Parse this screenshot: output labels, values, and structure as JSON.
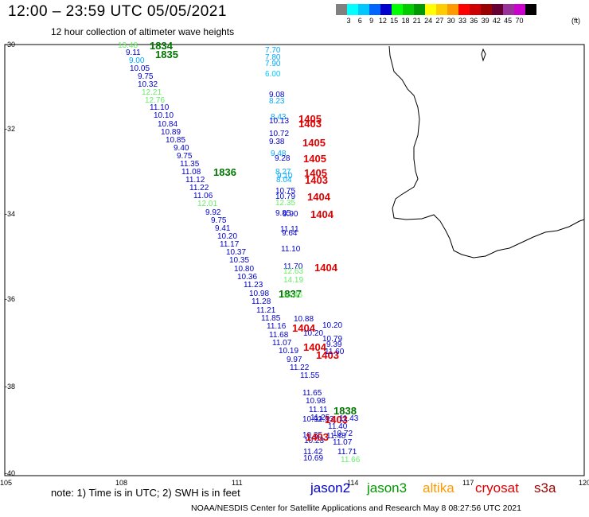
{
  "header": {
    "title": "12:00 – 23:59 UTC 05/05/2021",
    "subtitle": "12 hour collection of altimeter wave heights"
  },
  "color_scale": {
    "colors": [
      "#808080",
      "#00ffff",
      "#00c8ff",
      "#0064ff",
      "#0000cc",
      "#00ff00",
      "#00cc00",
      "#009900",
      "#ffff00",
      "#ffcc00",
      "#ff9900",
      "#ff0000",
      "#cc0000",
      "#990000",
      "#660033",
      "#993399",
      "#cc00cc",
      "#000000"
    ],
    "labels": [
      "3",
      "6",
      "9",
      "12",
      "15",
      "18",
      "21",
      "24",
      "27",
      "30",
      "33",
      "36",
      "39",
      "42",
      "45",
      "70"
    ],
    "unit": "(ft)"
  },
  "axes": {
    "lat_labels": [
      "-30",
      "-32",
      "-34",
      "-36",
      "-38",
      "-40"
    ],
    "lon_labels": [
      "105",
      "108",
      "111",
      "114",
      "117",
      "120"
    ]
  },
  "observations": [
    {
      "t": "13.48",
      "c": "#66ee66"
    },
    {
      "t": "1834",
      "c": "#007700",
      "big": true
    },
    {
      "t": "9.11",
      "c": "#0000cc"
    },
    {
      "t": "1835",
      "c": "#007700",
      "big": true
    },
    {
      "t": "9.00",
      "c": "#00aaff"
    },
    {
      "t": "10.05",
      "c": "#0000cc"
    },
    {
      "t": "9.75",
      "c": "#0000cc"
    },
    {
      "t": "10.32",
      "c": "#0000cc"
    },
    {
      "t": "12.21",
      "c": "#66ee66"
    },
    {
      "t": "12.76",
      "c": "#66ee66"
    },
    {
      "t": "11.10",
      "c": "#0000cc"
    },
    {
      "t": "10.10",
      "c": "#0000cc"
    },
    {
      "t": "10.84",
      "c": "#0000cc"
    },
    {
      "t": "10.89",
      "c": "#0000cc"
    },
    {
      "t": "10.85",
      "c": "#0000cc"
    },
    {
      "t": "9.40",
      "c": "#0000cc"
    },
    {
      "t": "9.75",
      "c": "#0000cc"
    },
    {
      "t": "11.35",
      "c": "#0000cc"
    },
    {
      "t": "11.08",
      "c": "#0000cc"
    },
    {
      "t": "1836",
      "c": "#007700",
      "big": true
    },
    {
      "t": "11.12",
      "c": "#0000cc"
    },
    {
      "t": "11.22",
      "c": "#0000cc"
    },
    {
      "t": "11.06",
      "c": "#0000cc"
    },
    {
      "t": "12.01",
      "c": "#66ee66"
    },
    {
      "t": "9.92",
      "c": "#0000cc"
    },
    {
      "t": "9.75",
      "c": "#0000cc"
    },
    {
      "t": "9.41",
      "c": "#0000cc"
    },
    {
      "t": "10.20",
      "c": "#0000cc"
    },
    {
      "t": "11.17",
      "c": "#0000cc"
    },
    {
      "t": "10.37",
      "c": "#0000cc"
    },
    {
      "t": "10.35",
      "c": "#0000cc"
    },
    {
      "t": "10.80",
      "c": "#0000cc"
    },
    {
      "t": "10.36",
      "c": "#0000cc"
    },
    {
      "t": "11.23",
      "c": "#0000cc"
    },
    {
      "t": "10.98",
      "c": "#0000cc"
    },
    {
      "t": "1837",
      "c": "#007700",
      "big": true
    },
    {
      "t": "11.28",
      "c": "#0000cc"
    },
    {
      "t": "11.21",
      "c": "#0000cc"
    },
    {
      "t": "11.85",
      "c": "#0000cc"
    },
    {
      "t": "11.16",
      "c": "#0000cc"
    },
    {
      "t": "11.68",
      "c": "#0000cc"
    },
    {
      "t": "11.07",
      "c": "#0000cc"
    },
    {
      "t": "10.19",
      "c": "#0000cc"
    },
    {
      "t": "9.97",
      "c": "#0000cc"
    },
    {
      "t": "11.22",
      "c": "#0000cc"
    },
    {
      "t": "11.55",
      "c": "#0000cc"
    },
    {
      "t": "11.65",
      "c": "#0000cc"
    },
    {
      "t": "10.98",
      "c": "#0000cc"
    },
    {
      "t": "11.11",
      "c": "#0000cc"
    },
    {
      "t": "1838",
      "c": "#007700",
      "big": true
    },
    {
      "t": "10.92",
      "c": "#0000cc"
    },
    {
      "t": "10.35",
      "c": "#0000cc"
    },
    {
      "t": "10.23",
      "c": "#0000cc"
    },
    {
      "t": "11.42",
      "c": "#0000cc"
    },
    {
      "t": "10.69",
      "c": "#0000cc"
    },
    {
      "t": "7.70",
      "c": "#00aaff"
    },
    {
      "t": "7.80",
      "c": "#00aaff"
    },
    {
      "t": "7.90",
      "c": "#00aaff"
    },
    {
      "t": "6.00",
      "c": "#00ccff"
    },
    {
      "t": "9.08",
      "c": "#0000cc"
    },
    {
      "t": "8.23",
      "c": "#00aaff"
    },
    {
      "t": "8.43",
      "c": "#00aaff"
    },
    {
      "t": "1405",
      "c": "#dd0000",
      "big": true
    },
    {
      "t": "10.13",
      "c": "#0000cc"
    },
    {
      "t": "1403",
      "c": "#dd0000",
      "big": true
    },
    {
      "t": "10.72",
      "c": "#0000cc"
    },
    {
      "t": "9.38",
      "c": "#0000cc"
    },
    {
      "t": "1405",
      "c": "#dd0000",
      "big": true
    },
    {
      "t": "9.48",
      "c": "#00aaff"
    },
    {
      "t": "9.28",
      "c": "#0000cc"
    },
    {
      "t": "1405",
      "c": "#dd0000",
      "big": true
    },
    {
      "t": "8.27",
      "c": "#00aaff"
    },
    {
      "t": "1405",
      "c": "#dd0000",
      "big": true
    },
    {
      "t": "9.10",
      "c": "#00aaff"
    },
    {
      "t": "1403",
      "c": "#dd0000",
      "big": true
    },
    {
      "t": "8.04",
      "c": "#00aaff"
    },
    {
      "t": "10.75",
      "c": "#0000cc"
    },
    {
      "t": "10.79",
      "c": "#0000cc"
    },
    {
      "t": "1404",
      "c": "#dd0000",
      "big": true
    },
    {
      "t": "12.35",
      "c": "#66ee66"
    },
    {
      "t": "9.85",
      "c": "#0000cc"
    },
    {
      "t": "1404",
      "c": "#dd0000",
      "big": true
    },
    {
      "t": "9.90",
      "c": "#0000cc"
    },
    {
      "t": "11.11",
      "c": "#0000cc"
    },
    {
      "t": "9.64",
      "c": "#0000cc"
    },
    {
      "t": "11.10",
      "c": "#0000cc"
    },
    {
      "t": "11.70",
      "c": "#0000cc"
    },
    {
      "t": "1404",
      "c": "#dd0000",
      "big": true
    },
    {
      "t": "12.63",
      "c": "#66ee66"
    },
    {
      "t": "14.19",
      "c": "#66ee66"
    },
    {
      "t": "14.46",
      "c": "#66ee66"
    },
    {
      "t": "10.79",
      "c": "#0000cc"
    },
    {
      "t": "10.88",
      "c": "#0000cc"
    },
    {
      "t": "1404",
      "c": "#dd0000",
      "big": true
    },
    {
      "t": "10.20",
      "c": "#0000cc"
    },
    {
      "t": "10.20",
      "c": "#0000cc"
    },
    {
      "t": "1404",
      "c": "#dd0000",
      "big": true
    },
    {
      "t": "9.39",
      "c": "#0000cc"
    },
    {
      "t": "1403",
      "c": "#dd0000",
      "big": true
    },
    {
      "t": "11.60",
      "c": "#0000cc"
    },
    {
      "t": "11.25",
      "c": "#0000cc"
    },
    {
      "t": "11.53",
      "c": "#0000cc"
    },
    {
      "t": "1403",
      "c": "#dd0000",
      "big": true
    },
    {
      "t": "11.43",
      "c": "#0000cc"
    },
    {
      "t": "11.40",
      "c": "#0000cc"
    },
    {
      "t": "1403",
      "c": "#dd0000",
      "big": true
    },
    {
      "t": "10.72",
      "c": "#0000cc"
    },
    {
      "t": "11.48",
      "c": "#0000cc"
    },
    {
      "t": "11.07",
      "c": "#0000cc"
    },
    {
      "t": "11.71",
      "c": "#0000cc"
    },
    {
      "t": "11.66",
      "c": "#66ee66"
    }
  ],
  "footer": {
    "note": "note:  1) Time is in UTC;  2) SWH is in feet",
    "satellites": [
      {
        "name": "jason2",
        "color": "#0000cc"
      },
      {
        "name": "jason3",
        "color": "#009900"
      },
      {
        "name": "altika",
        "color": "#ff9900"
      },
      {
        "name": "cryosat",
        "color": "#dd0000"
      },
      {
        "name": "s3a",
        "color": "#990000"
      }
    ],
    "credit": "NOAA/NESDIS Center for Satellite Applications and Research     May  8 08:27:56 UTC 2021"
  }
}
